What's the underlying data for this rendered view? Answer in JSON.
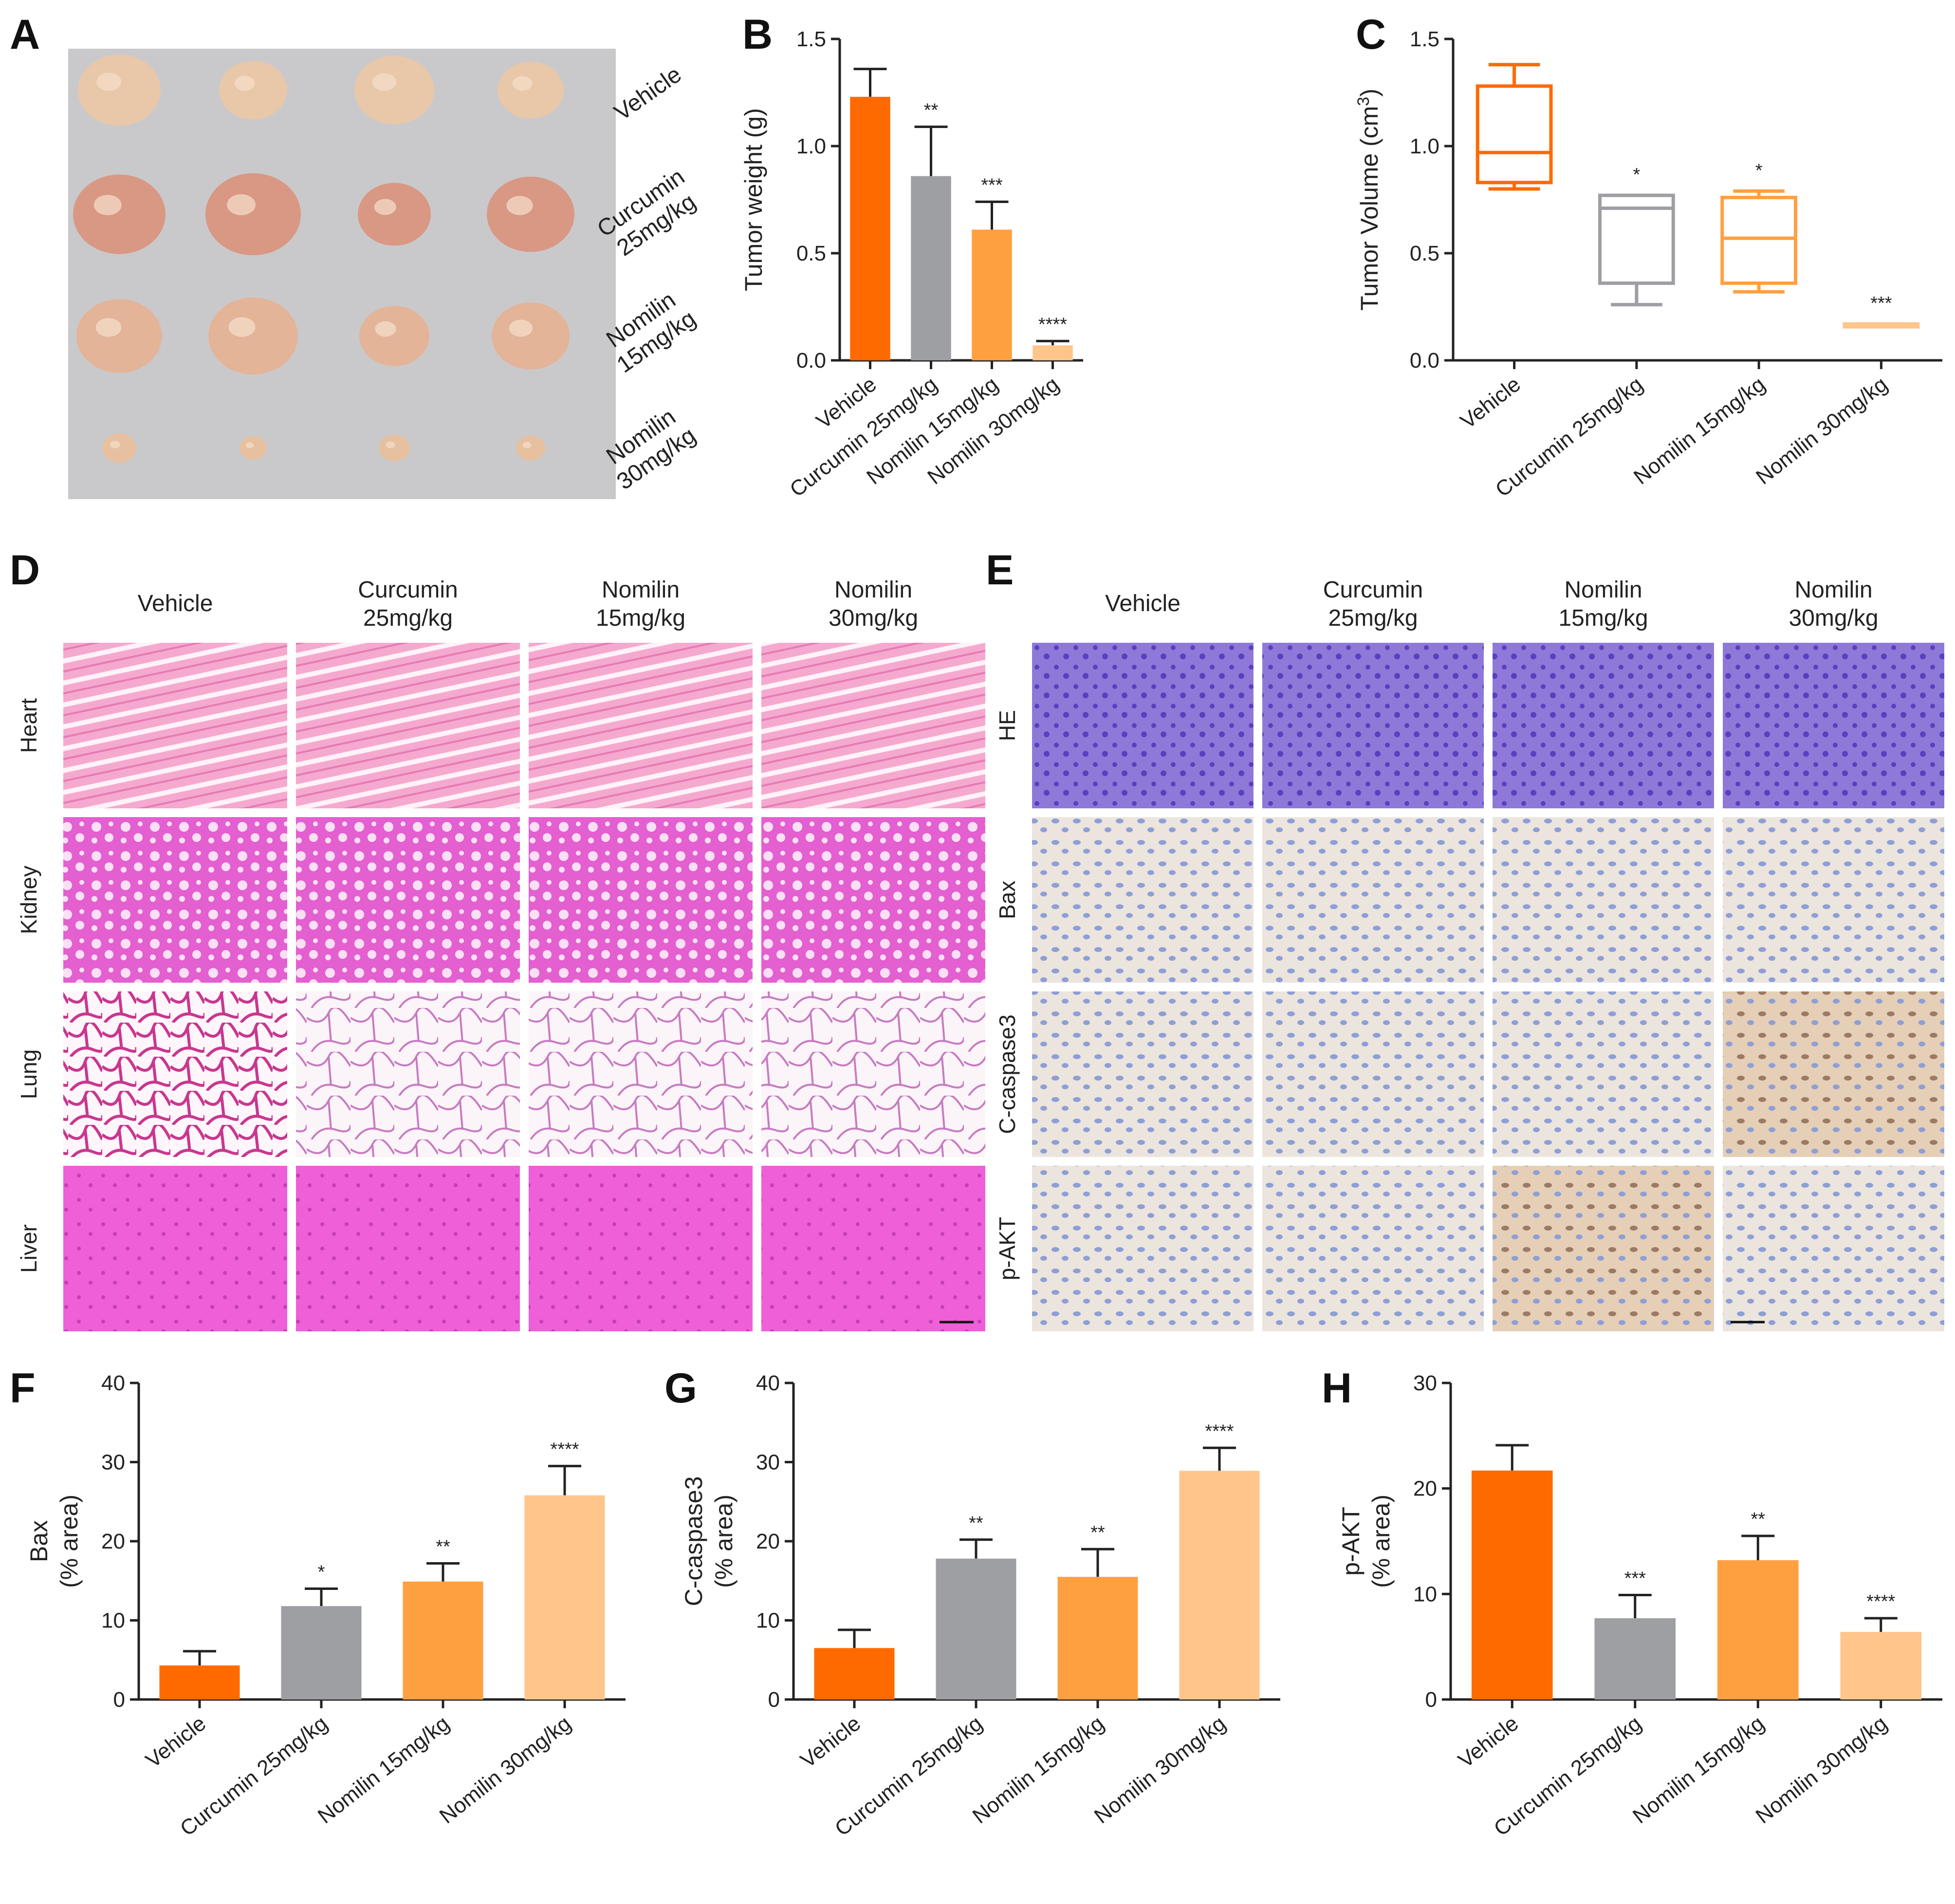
{
  "panel_letters": [
    "A",
    "B",
    "C",
    "D",
    "E",
    "F",
    "G",
    "H"
  ],
  "groups": [
    "Vehicle",
    "Curcumin 25mg/kg",
    "Nomilin 15mg/kg",
    "Nomilin 30mg/kg"
  ],
  "group_colors": [
    "#ff6a00",
    "#9e9fa3",
    "#ffa040",
    "#ffc58a"
  ],
  "panel_A": {
    "row_labels": [
      [
        "Vehicle"
      ],
      [
        "Curcumin",
        "25mg/kg"
      ],
      [
        "Nomilin",
        "15mg/kg"
      ],
      [
        "Nomilin",
        "30mg/kg"
      ]
    ]
  },
  "panel_D": {
    "column_titles": [
      [
        "Vehicle"
      ],
      [
        "Curcumin",
        "25mg/kg"
      ],
      [
        "Nomilin",
        "15mg/kg"
      ],
      [
        "Nomilin",
        "30mg/kg"
      ]
    ],
    "row_labels": [
      "Heart",
      "Kidney",
      "Lung",
      "Liver"
    ]
  },
  "panel_E": {
    "column_titles": [
      [
        "Vehicle"
      ],
      [
        "Curcumin",
        "25mg/kg"
      ],
      [
        "Nomilin",
        "15mg/kg"
      ],
      [
        "Nomilin",
        "30mg/kg"
      ]
    ],
    "row_labels": [
      "HE",
      "Bax",
      "C-caspase3",
      "p-AKT"
    ]
  },
  "chart_data": [
    {
      "id": "B",
      "type": "bar",
      "categories": [
        "Vehicle",
        "Curcumin 25mg/kg",
        "Nomilin 15mg/kg",
        "Nomilin 30mg/kg"
      ],
      "values": [
        1.23,
        0.86,
        0.61,
        0.07
      ],
      "errors": [
        0.13,
        0.23,
        0.13,
        0.02
      ],
      "significance": [
        "",
        "**",
        "***",
        "****"
      ],
      "ylabel": "Tumor weight (g)",
      "ylim": [
        0,
        1.5
      ],
      "yticks": [
        "0.0",
        "0.5",
        "1.0",
        "1.5"
      ]
    },
    {
      "id": "C",
      "type": "boxplot",
      "categories": [
        "Vehicle",
        "Curcumin 25mg/kg",
        "Nomilin 15mg/kg",
        "Nomilin 30mg/kg"
      ],
      "boxes": [
        {
          "min": 0.8,
          "q1": 0.83,
          "median": 0.97,
          "q3": 1.28,
          "max": 1.38
        },
        {
          "min": 0.26,
          "q1": 0.36,
          "median": 0.71,
          "q3": 0.77,
          "max": 0.77
        },
        {
          "min": 0.32,
          "q1": 0.36,
          "median": 0.57,
          "q3": 0.76,
          "max": 0.79
        },
        {
          "min": 0.16,
          "q1": 0.16,
          "median": 0.16,
          "q3": 0.17,
          "max": 0.17
        }
      ],
      "significance": [
        "",
        "*",
        "*",
        "***"
      ],
      "ylabel_main": "Tumor Volume (cm",
      "ylabel_sup": "3",
      "ylabel_end": ")",
      "ylim": [
        0,
        1.5
      ],
      "yticks": [
        "0.0",
        "0.5",
        "1.0",
        "1.5"
      ]
    },
    {
      "id": "F",
      "type": "bar",
      "categories": [
        "Vehicle",
        "Curcumin 25mg/kg",
        "Nomilin 15mg/kg",
        "Nomilin 30mg/kg"
      ],
      "values": [
        4.3,
        11.8,
        14.9,
        25.8
      ],
      "errors": [
        1.8,
        2.2,
        2.3,
        3.7
      ],
      "significance": [
        "",
        "*",
        "**",
        "****"
      ],
      "ylabel_lines": [
        "Bax",
        "(% area)"
      ],
      "ylim": [
        0,
        40
      ],
      "yticks": [
        "0",
        "10",
        "20",
        "30",
        "40"
      ]
    },
    {
      "id": "G",
      "type": "bar",
      "categories": [
        "Vehicle",
        "Curcumin 25mg/kg",
        "Nomilin 15mg/kg",
        "Nomilin 30mg/kg"
      ],
      "values": [
        6.5,
        17.8,
        15.5,
        28.9
      ],
      "errors": [
        2.3,
        2.4,
        3.5,
        2.9
      ],
      "significance": [
        "",
        "**",
        "**",
        "****"
      ],
      "ylabel_lines": [
        "C-caspase3",
        "(% area)"
      ],
      "ylim": [
        0,
        40
      ],
      "yticks": [
        "0",
        "10",
        "20",
        "30",
        "40"
      ]
    },
    {
      "id": "H",
      "type": "bar",
      "categories": [
        "Vehicle",
        "Curcumin 25mg/kg",
        "Nomilin 15mg/kg",
        "Nomilin 30mg/kg"
      ],
      "values": [
        21.7,
        7.7,
        13.2,
        6.4
      ],
      "errors": [
        2.4,
        2.2,
        2.3,
        1.3
      ],
      "significance": [
        "",
        "***",
        "**",
        "****"
      ],
      "ylabel_lines": [
        "p-AKT",
        "(% area)"
      ],
      "ylim": [
        0,
        30
      ],
      "yticks": [
        "0",
        "10",
        "20",
        "30"
      ]
    }
  ]
}
